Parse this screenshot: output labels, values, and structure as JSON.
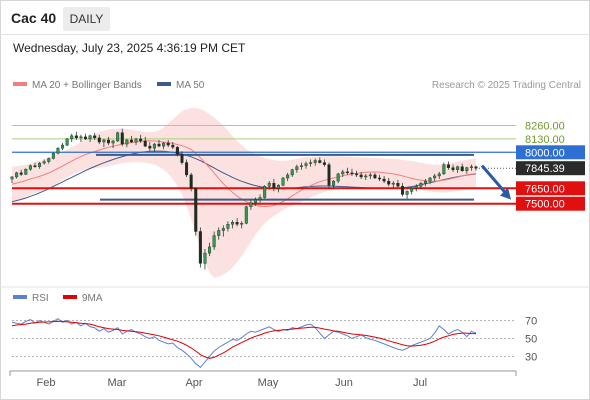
{
  "header": {
    "instrument": "Cac 40",
    "timeframe": "DAILY",
    "datetime": "Wednesday, July 23, 2025 4:36:19 PM CET",
    "research": "Research © 2025 Trading Central"
  },
  "legend_main": [
    {
      "label": "MA 20 + Bollinger Bands",
      "color": "#f08080"
    },
    {
      "label": "MA 50",
      "color": "#3d5a8a"
    }
  ],
  "legend_rsi": [
    {
      "label": "RSI",
      "color": "#5b7fd6"
    },
    {
      "label": "9MA",
      "color": "#e00000"
    }
  ],
  "chart_data": [
    {
      "type": "candlestick",
      "months": [
        "Feb",
        "Mar",
        "Apr",
        "May",
        "Jun",
        "Jul"
      ],
      "ylim": [
        6700,
        8450
      ],
      "last_price": 7845.39,
      "levels": [
        {
          "value": 8260.0,
          "label": "8260.00",
          "kind": "target-green"
        },
        {
          "value": 8130.0,
          "label": "8130.00",
          "kind": "target-green"
        },
        {
          "value": 8000.0,
          "label": "8000.00",
          "kind": "resistance"
        },
        {
          "value": 7650.0,
          "label": "7650.00",
          "kind": "support"
        },
        {
          "value": 7500.0,
          "label": "7500.00",
          "kind": "support"
        }
      ],
      "candles": [
        [
          7740,
          7770,
          7700,
          7760
        ],
        [
          7760,
          7810,
          7745,
          7800
        ],
        [
          7800,
          7830,
          7770,
          7785
        ],
        [
          7785,
          7845,
          7780,
          7835
        ],
        [
          7835,
          7880,
          7820,
          7870
        ],
        [
          7870,
          7900,
          7850,
          7860
        ],
        [
          7860,
          7905,
          7840,
          7895
        ],
        [
          7895,
          7930,
          7880,
          7910
        ],
        [
          7910,
          7950,
          7890,
          7940
        ],
        [
          7940,
          8000,
          7930,
          7990
        ],
        [
          7990,
          8050,
          7980,
          8040
        ],
        [
          8040,
          8090,
          8020,
          8070
        ],
        [
          8070,
          8140,
          8060,
          8130
        ],
        [
          8130,
          8180,
          8100,
          8160
        ],
        [
          8160,
          8200,
          8120,
          8140
        ],
        [
          8140,
          8170,
          8100,
          8150
        ],
        [
          8150,
          8180,
          8120,
          8130
        ],
        [
          8130,
          8170,
          8100,
          8160
        ],
        [
          8160,
          8190,
          8120,
          8140
        ],
        [
          8140,
          8170,
          8080,
          8100
        ],
        [
          8100,
          8130,
          8050,
          8120
        ],
        [
          8120,
          8150,
          8070,
          8090
        ],
        [
          8090,
          8120,
          8040,
          8110
        ],
        [
          8110,
          8200,
          8100,
          8190
        ],
        [
          8190,
          8230,
          8060,
          8080
        ],
        [
          8080,
          8130,
          8050,
          8120
        ],
        [
          8120,
          8160,
          8090,
          8100
        ],
        [
          8100,
          8140,
          8070,
          8130
        ],
        [
          8130,
          8170,
          8090,
          8110
        ],
        [
          8110,
          8150,
          8050,
          8060
        ],
        [
          8060,
          8100,
          8010,
          8040
        ],
        [
          8040,
          8090,
          8000,
          8080
        ],
        [
          8080,
          8120,
          8050,
          8060
        ],
        [
          8060,
          8100,
          8030,
          8090
        ],
        [
          8090,
          8120,
          8050,
          8070
        ],
        [
          8070,
          8100,
          8030,
          8050
        ],
        [
          8050,
          8060,
          7960,
          7980
        ],
        [
          7980,
          8010,
          7880,
          7900
        ],
        [
          7900,
          7930,
          7760,
          7780
        ],
        [
          7780,
          7800,
          7620,
          7650
        ],
        [
          7650,
          7660,
          7190,
          7230
        ],
        [
          7230,
          7270,
          6880,
          6920
        ],
        [
          6920,
          7060,
          6860,
          7020
        ],
        [
          7020,
          7120,
          6990,
          7080
        ],
        [
          7080,
          7230,
          7050,
          7190
        ],
        [
          7190,
          7270,
          7150,
          7240
        ],
        [
          7240,
          7290,
          7180,
          7260
        ],
        [
          7260,
          7330,
          7230,
          7300
        ],
        [
          7300,
          7340,
          7260,
          7320
        ],
        [
          7320,
          7360,
          7280,
          7300
        ],
        [
          7300,
          7330,
          7260,
          7310
        ],
        [
          7310,
          7480,
          7300,
          7470
        ],
        [
          7470,
          7540,
          7440,
          7510
        ],
        [
          7510,
          7560,
          7480,
          7540
        ],
        [
          7540,
          7590,
          7510,
          7560
        ],
        [
          7560,
          7680,
          7550,
          7670
        ],
        [
          7670,
          7720,
          7640,
          7700
        ],
        [
          7700,
          7740,
          7620,
          7650
        ],
        [
          7650,
          7690,
          7610,
          7680
        ],
        [
          7680,
          7760,
          7670,
          7750
        ],
        [
          7750,
          7800,
          7720,
          7780
        ],
        [
          7780,
          7840,
          7760,
          7830
        ],
        [
          7830,
          7880,
          7800,
          7860
        ],
        [
          7860,
          7900,
          7830,
          7870
        ],
        [
          7870,
          7910,
          7840,
          7890
        ],
        [
          7890,
          7930,
          7860,
          7900
        ],
        [
          7900,
          7940,
          7870,
          7920
        ],
        [
          7920,
          7950,
          7890,
          7900
        ],
        [
          7900,
          7930,
          7860,
          7880
        ],
        [
          7880,
          7900,
          7650,
          7680
        ],
        [
          7680,
          7730,
          7650,
          7720
        ],
        [
          7720,
          7800,
          7700,
          7790
        ],
        [
          7790,
          7830,
          7760,
          7810
        ],
        [
          7810,
          7850,
          7780,
          7800
        ],
        [
          7800,
          7840,
          7770,
          7790
        ],
        [
          7790,
          7820,
          7760,
          7780
        ],
        [
          7780,
          7810,
          7740,
          7760
        ],
        [
          7760,
          7790,
          7730,
          7770
        ],
        [
          7770,
          7800,
          7740,
          7780
        ],
        [
          7780,
          7800,
          7740,
          7750
        ],
        [
          7750,
          7780,
          7720,
          7740
        ],
        [
          7740,
          7770,
          7700,
          7720
        ],
        [
          7720,
          7750,
          7670,
          7690
        ],
        [
          7690,
          7720,
          7650,
          7700
        ],
        [
          7700,
          7730,
          7660,
          7670
        ],
        [
          7670,
          7700,
          7570,
          7590
        ],
        [
          7590,
          7630,
          7550,
          7620
        ],
        [
          7620,
          7660,
          7590,
          7650
        ],
        [
          7650,
          7690,
          7620,
          7670
        ],
        [
          7670,
          7710,
          7640,
          7700
        ],
        [
          7700,
          7740,
          7670,
          7720
        ],
        [
          7720,
          7760,
          7690,
          7750
        ],
        [
          7750,
          7790,
          7720,
          7770
        ],
        [
          7770,
          7810,
          7740,
          7790
        ],
        [
          7790,
          7900,
          7780,
          7880
        ],
        [
          7880,
          7910,
          7830,
          7850
        ],
        [
          7850,
          7880,
          7810,
          7830
        ],
        [
          7830,
          7870,
          7800,
          7860
        ],
        [
          7860,
          7890,
          7810,
          7820
        ],
        [
          7820,
          7860,
          7790,
          7850
        ],
        [
          7850,
          7880,
          7820,
          7860
        ],
        [
          7860,
          7870,
          7820,
          7845
        ]
      ],
      "ma20": [
        7690,
        7700,
        7712,
        7726,
        7740,
        7752,
        7766,
        7782,
        7800,
        7820,
        7842,
        7866,
        7890,
        7914,
        7938,
        7958,
        7978,
        7994,
        8008,
        8022,
        8036,
        8048,
        8058,
        8070,
        8080,
        8088,
        8094,
        8100,
        8106,
        8110,
        8112,
        8110,
        8106,
        8100,
        8094,
        8086,
        8076,
        8064,
        8048,
        8026,
        7990,
        7946,
        7898,
        7850,
        7800,
        7746,
        7696,
        7650,
        7610,
        7574,
        7544,
        7520,
        7500,
        7486,
        7476,
        7472,
        7476,
        7484,
        7500,
        7522,
        7548,
        7576,
        7604,
        7632,
        7656,
        7676,
        7696,
        7714,
        7728,
        7738,
        7750,
        7760,
        7772,
        7782,
        7790,
        7796,
        7800,
        7806,
        7808,
        7808,
        7806,
        7802,
        7796,
        7790,
        7780,
        7770,
        7758,
        7746,
        7736,
        7728,
        7722,
        7718,
        7718,
        7722,
        7730,
        7738,
        7748,
        7758,
        7770,
        7780,
        7788,
        7794
      ],
      "bb_upper": [
        7860,
        7866,
        7872,
        7880,
        7890,
        7902,
        7916,
        7932,
        7948,
        7964,
        7982,
        8002,
        8024,
        8048,
        8074,
        8100,
        8126,
        8152,
        8176,
        8196,
        8212,
        8222,
        8228,
        8230,
        8230,
        8226,
        8220,
        8212,
        8204,
        8198,
        8196,
        8200,
        8212,
        8240,
        8280,
        8320,
        8360,
        8400,
        8420,
        8430,
        8430,
        8420,
        8400,
        8370,
        8340,
        8300,
        8260,
        8210,
        8160,
        8110,
        8070,
        8030,
        8000,
        7980,
        7960,
        7946,
        7934,
        7924,
        7918,
        7916,
        7920,
        7928,
        7936,
        7944,
        7950,
        7954,
        7956,
        7958,
        7960,
        7962,
        7962,
        7960,
        7958,
        7956,
        7954,
        7952,
        7950,
        7948,
        7946,
        7944,
        7942,
        7940,
        7938,
        7936,
        7932,
        7926,
        7920,
        7914,
        7906,
        7898,
        7890,
        7884,
        7880,
        7880,
        7884,
        7890,
        7898,
        7908,
        7918,
        7928,
        7934,
        7938
      ],
      "bb_lower": [
        7520,
        7532,
        7548,
        7566,
        7586,
        7604,
        7618,
        7632,
        7650,
        7672,
        7700,
        7728,
        7756,
        7780,
        7800,
        7816,
        7830,
        7840,
        7846,
        7850,
        7856,
        7864,
        7874,
        7884,
        7894,
        7900,
        7904,
        7906,
        7904,
        7900,
        7892,
        7878,
        7858,
        7830,
        7790,
        7740,
        7670,
        7590,
        7480,
        7350,
        7210,
        7060,
        6930,
        6830,
        6780,
        6790,
        6810,
        6840,
        6880,
        6930,
        6990,
        7060,
        7130,
        7200,
        7260,
        7310,
        7350,
        7380,
        7410,
        7440,
        7460,
        7480,
        7500,
        7520,
        7540,
        7560,
        7580,
        7600,
        7614,
        7626,
        7636,
        7644,
        7650,
        7654,
        7656,
        7656,
        7654,
        7652,
        7650,
        7648,
        7648,
        7650,
        7652,
        7654,
        7656,
        7656,
        7654,
        7650,
        7644,
        7636,
        7628,
        7620,
        7614,
        7610,
        7610,
        7612,
        7616,
        7622,
        7630,
        7640,
        7650,
        7660
      ],
      "ma50": [
        7520,
        7530,
        7542,
        7556,
        7572,
        7588,
        7606,
        7626,
        7646,
        7668,
        7690,
        7712,
        7734,
        7756,
        7778,
        7800,
        7822,
        7842,
        7862,
        7880,
        7898,
        7914,
        7930,
        7944,
        7958,
        7970,
        7982,
        7992,
        8000,
        8006,
        8010,
        8012,
        8012,
        8010,
        8006,
        8000,
        7992,
        7982,
        7970,
        7956,
        7938,
        7918,
        7896,
        7872,
        7848,
        7824,
        7800,
        7778,
        7756,
        7736,
        7718,
        7702,
        7688,
        7676,
        7666,
        7658,
        7652,
        7648,
        7646,
        7646,
        7648,
        7652,
        7656,
        7660,
        7664,
        7668,
        7670,
        7672,
        7672,
        7672,
        7670,
        7668,
        7666,
        7664,
        7662,
        7660,
        7658,
        7656,
        7654,
        7652,
        7650,
        7650,
        7650,
        7650,
        7652,
        7656,
        7660,
        7666,
        7674,
        7684,
        7694,
        7704,
        7714,
        7724,
        7734,
        7744,
        7754,
        7762,
        7770,
        7778,
        7784,
        7790
      ]
    },
    {
      "type": "line",
      "name": "RSI",
      "ylim": [
        15,
        85
      ],
      "ticks": [
        70,
        50,
        30
      ],
      "series": [
        {
          "name": "RSI",
          "values": [
            68,
            67,
            66,
            69,
            71,
            67,
            70,
            68,
            66,
            69,
            72,
            68,
            70,
            66,
            68,
            64,
            67,
            63,
            62,
            58,
            61,
            57,
            59,
            62,
            55,
            58,
            60,
            57,
            55,
            52,
            50,
            52,
            48,
            46,
            44,
            45,
            40,
            37,
            33,
            28,
            22,
            18,
            24,
            30,
            36,
            40,
            43,
            46,
            49,
            48,
            51,
            55,
            58,
            57,
            59,
            61,
            63,
            60,
            58,
            60,
            59,
            62,
            61,
            63,
            65,
            66,
            62,
            56,
            50,
            54,
            58,
            57,
            55,
            53,
            50,
            52,
            54,
            51,
            49,
            48,
            46,
            44,
            42,
            40,
            38,
            37,
            39,
            42,
            44,
            46,
            48,
            50,
            56,
            64,
            60,
            55,
            58,
            60,
            57,
            52,
            58,
            56
          ]
        },
        {
          "name": "9MA",
          "values": [
            64,
            65,
            65.5,
            66,
            67,
            67.5,
            68,
            68.3,
            68.5,
            68.8,
            69,
            69,
            68.5,
            68,
            67.5,
            67,
            66.5,
            66,
            64.5,
            63,
            62,
            61,
            60.5,
            60,
            59,
            58.5,
            58,
            57.5,
            57,
            56,
            55,
            54,
            53,
            51.5,
            50,
            48.5,
            47,
            45,
            42.5,
            39.5,
            36,
            32,
            29.5,
            28,
            29,
            31.5,
            34,
            37,
            40.5,
            43,
            45.5,
            48,
            50.5,
            52.5,
            54,
            56,
            57.5,
            58.5,
            59,
            59.5,
            60,
            60.5,
            61,
            61.5,
            62,
            62.5,
            62.5,
            61.5,
            60.5,
            59.5,
            58.5,
            58,
            57,
            56,
            55,
            54.5,
            54,
            53.5,
            52.5,
            51.5,
            50.5,
            49,
            47.5,
            46,
            44.5,
            43,
            42,
            41.5,
            42,
            42.5,
            43.5,
            45,
            47,
            49.5,
            51.5,
            53,
            54.5,
            55.5,
            56,
            56,
            55.5,
            55.5
          ]
        }
      ]
    }
  ]
}
